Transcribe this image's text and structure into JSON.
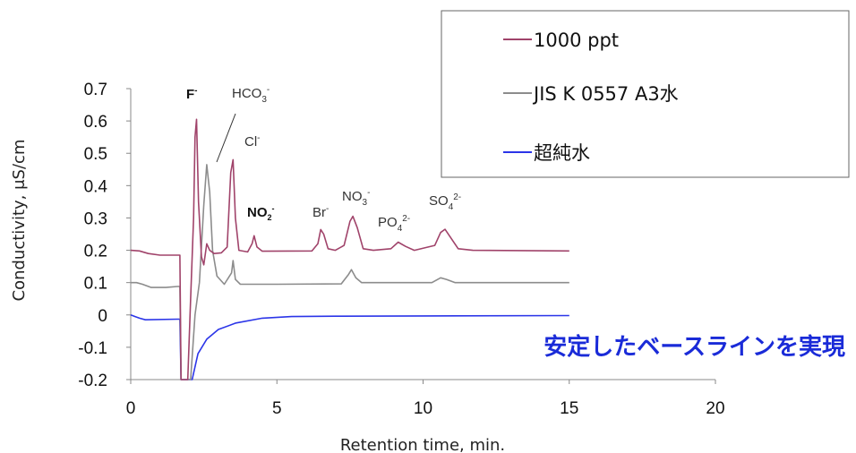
{
  "chart_data": {
    "type": "line",
    "xlabel": "Retention time, min.",
    "ylabel": "Conductivity, μS/cm",
    "xlim": [
      0,
      20
    ],
    "ylim": [
      -0.2,
      0.7
    ],
    "xticks": [
      0,
      5,
      10,
      15,
      20
    ],
    "yticks": [
      -0.2,
      -0.1,
      0,
      0.1,
      0.2,
      0.3,
      0.4,
      0.5,
      0.6,
      0.7
    ],
    "ytick_labels": [
      "-0.2",
      "-0.1",
      "0",
      "0.1",
      "0.2",
      "0.3",
      "0.4",
      "0.5",
      "0.6",
      "0.7"
    ],
    "grid": false,
    "legend_position": "top-right",
    "series": [
      {
        "name": "1000 ppt",
        "color": "#a0436a",
        "points": [
          [
            0,
            0.2
          ],
          [
            0.3,
            0.198
          ],
          [
            0.6,
            0.19
          ],
          [
            1.0,
            0.185
          ],
          [
            1.6,
            0.185
          ],
          [
            1.68,
            0.185
          ],
          [
            1.72,
            -0.2
          ],
          [
            1.95,
            -0.2
          ],
          [
            2.05,
            0.05
          ],
          [
            2.15,
            0.3
          ],
          [
            2.2,
            0.55
          ],
          [
            2.25,
            0.605
          ],
          [
            2.32,
            0.35
          ],
          [
            2.42,
            0.18
          ],
          [
            2.5,
            0.155
          ],
          [
            2.6,
            0.22
          ],
          [
            2.7,
            0.2
          ],
          [
            2.85,
            0.19
          ],
          [
            3.1,
            0.192
          ],
          [
            3.3,
            0.21
          ],
          [
            3.42,
            0.44
          ],
          [
            3.5,
            0.48
          ],
          [
            3.58,
            0.3
          ],
          [
            3.7,
            0.2
          ],
          [
            4.0,
            0.195
          ],
          [
            4.15,
            0.22
          ],
          [
            4.22,
            0.245
          ],
          [
            4.32,
            0.21
          ],
          [
            4.5,
            0.197
          ],
          [
            6.2,
            0.198
          ],
          [
            6.4,
            0.22
          ],
          [
            6.5,
            0.264
          ],
          [
            6.6,
            0.25
          ],
          [
            6.75,
            0.205
          ],
          [
            7.0,
            0.2
          ],
          [
            7.3,
            0.215
          ],
          [
            7.5,
            0.29
          ],
          [
            7.6,
            0.305
          ],
          [
            7.75,
            0.27
          ],
          [
            7.95,
            0.205
          ],
          [
            8.3,
            0.2
          ],
          [
            8.9,
            0.205
          ],
          [
            9.15,
            0.225
          ],
          [
            9.4,
            0.212
          ],
          [
            9.7,
            0.2
          ],
          [
            10.4,
            0.215
          ],
          [
            10.6,
            0.255
          ],
          [
            10.75,
            0.265
          ],
          [
            10.9,
            0.245
          ],
          [
            11.2,
            0.205
          ],
          [
            11.7,
            0.2
          ],
          [
            15,
            0.198
          ]
        ]
      },
      {
        "name": "JIS K 0557 A3水",
        "color": "#8c8c8c",
        "points": [
          [
            0,
            0.1
          ],
          [
            0.2,
            0.1
          ],
          [
            0.4,
            0.095
          ],
          [
            0.7,
            0.085
          ],
          [
            1.2,
            0.085
          ],
          [
            1.6,
            0.088
          ],
          [
            1.68,
            0.088
          ],
          [
            1.72,
            -0.2
          ],
          [
            2.05,
            -0.2
          ],
          [
            2.2,
            0.0
          ],
          [
            2.35,
            0.1
          ],
          [
            2.5,
            0.34
          ],
          [
            2.6,
            0.465
          ],
          [
            2.7,
            0.38
          ],
          [
            2.8,
            0.2
          ],
          [
            2.95,
            0.12
          ],
          [
            3.2,
            0.095
          ],
          [
            3.45,
            0.13
          ],
          [
            3.5,
            0.168
          ],
          [
            3.58,
            0.11
          ],
          [
            3.75,
            0.095
          ],
          [
            5,
            0.095
          ],
          [
            7.2,
            0.096
          ],
          [
            7.45,
            0.125
          ],
          [
            7.55,
            0.14
          ],
          [
            7.7,
            0.115
          ],
          [
            7.9,
            0.1
          ],
          [
            10.3,
            0.1
          ],
          [
            10.6,
            0.115
          ],
          [
            10.8,
            0.11
          ],
          [
            11.1,
            0.1
          ],
          [
            15,
            0.1
          ]
        ]
      },
      {
        "name": "超純水",
        "color": "#2b35e8",
        "points": [
          [
            0,
            0.0
          ],
          [
            0.15,
            -0.005
          ],
          [
            0.3,
            -0.01
          ],
          [
            0.5,
            -0.015
          ],
          [
            1.6,
            -0.013
          ],
          [
            1.68,
            -0.013
          ],
          [
            1.72,
            -0.2
          ],
          [
            2.1,
            -0.2
          ],
          [
            2.3,
            -0.12
          ],
          [
            2.6,
            -0.075
          ],
          [
            3.0,
            -0.045
          ],
          [
            3.6,
            -0.025
          ],
          [
            4.5,
            -0.01
          ],
          [
            5.5,
            -0.005
          ],
          [
            7,
            -0.004
          ],
          [
            10,
            -0.003
          ],
          [
            15,
            -0.002
          ]
        ]
      }
    ],
    "peak_labels": {
      "F": "F",
      "F_sup": "-",
      "HCO3": "HCO",
      "HCO3_sub": "3",
      "HCO3_sup": "-",
      "Cl": "Cl",
      "Cl_sup": "-",
      "NO2": "NO",
      "NO2_sub": "2",
      "NO2_sup": "-",
      "Br": "Br",
      "Br_sup": "-",
      "NO3": "NO",
      "NO3_sub": "3",
      "NO3_sup": "-",
      "PO4": "PO",
      "PO4_sub": "4",
      "PO4_sup": "2-",
      "SO4": "SO",
      "SO4_sub": "4",
      "SO4_sup": "2-"
    },
    "annotation": "安定したベースラインを実現",
    "annotation_color": "#1a2bd8"
  }
}
